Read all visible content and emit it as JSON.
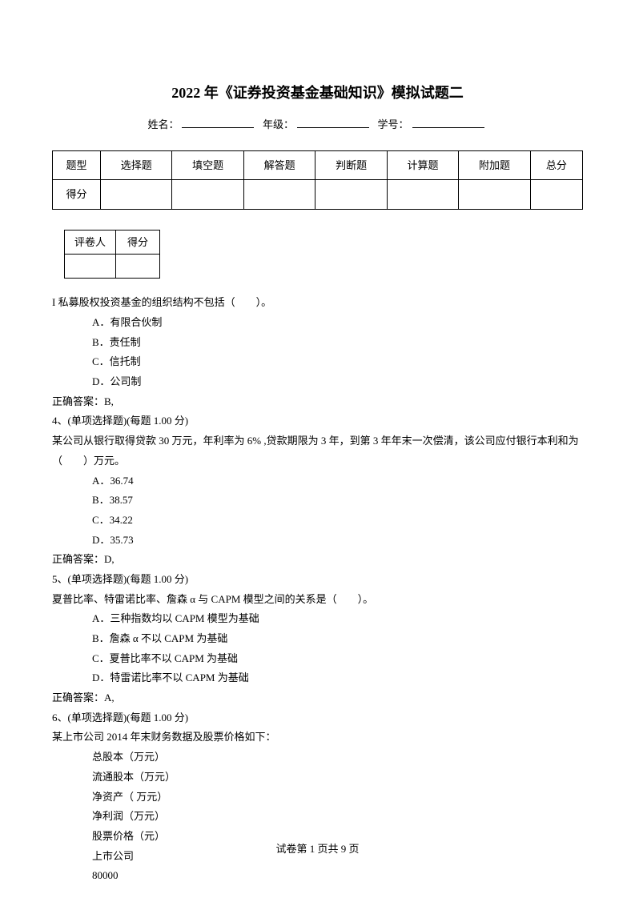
{
  "title": "2022 年《证券投资基金基础知识》模拟试题二",
  "info": {
    "name_label": "姓名：",
    "grade_label": "年级：",
    "id_label": "学号："
  },
  "main_table": {
    "headers": [
      "题型",
      "选择题",
      "填空题",
      "解答题",
      "判断题",
      "计算题",
      "附加题",
      "总分"
    ],
    "row_label": "得分"
  },
  "small_table": {
    "c1": "评卷人",
    "c2": "得分"
  },
  "body": {
    "q1_stem": "I 私募股权投资基金的组织结构不包括（　　）。",
    "q1_a": "A．有限合伙制",
    "q1_b": "B．责任制",
    "q1_c": "C．信托制",
    "q1_d": "D．公司制",
    "q1_ans": "正确答案：B,",
    "q4_head": "4、(单项选择题)(每题 1.00 分)",
    "q4_stem": "某公司从银行取得贷款 30 万元，年利率为 6% ,贷款期限为 3 年，到第 3 年年末一次偿清，该公司应付银行本利和为（　　）万元。",
    "q4_a": "A．36.74",
    "q4_b": "B．38.57",
    "q4_c": "C．34.22",
    "q4_d": "D．35.73",
    "q4_ans": "正确答案：D,",
    "q5_head": "5、(单项选择题)(每题 1.00 分)",
    "q5_stem": "夏普比率、特雷诺比率、詹森 α 与 CAPM 模型之间的关系是（　　）。",
    "q5_a": "A．三种指数均以 CAPM 模型为基础",
    "q5_b": "B．詹森 α 不以 CAPM 为基础",
    "q5_c": "C．夏普比率不以 CAPM 为基础",
    "q5_d": "D．特雷诺比率不以 CAPM 为基础",
    "q5_ans": "正确答案：A,",
    "q6_head": "6、(单项选择题)(每题 1.00 分)",
    "q6_stem": "某上市公司 2014 年末财务数据及股票价格如下：",
    "q6_l1": "总股本（万元）",
    "q6_l2": "流通股本（万元）",
    "q6_l3": "净资产（ 万元）",
    "q6_l4": "净利润（万元）",
    "q6_l5": "股票价格（元）",
    "q6_l6": "上市公司",
    "q6_l7": "80000"
  },
  "footer": "试卷第 1 页共 9 页"
}
